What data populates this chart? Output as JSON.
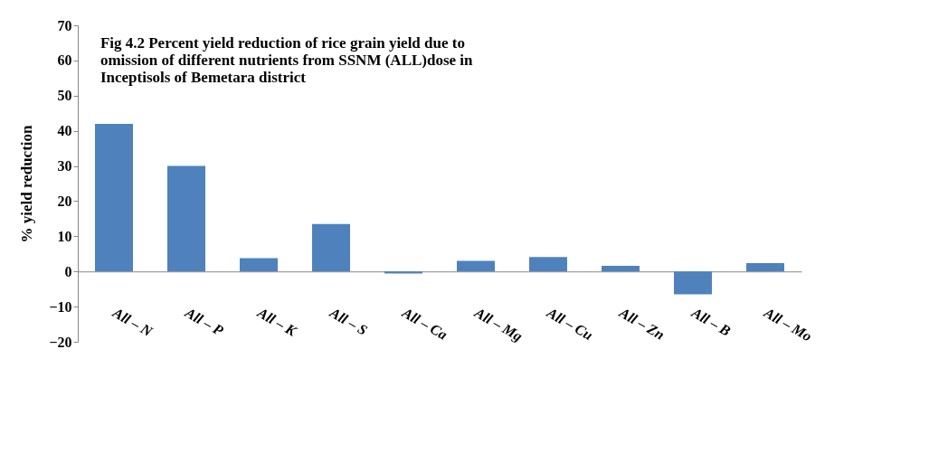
{
  "chart_data": {
    "type": "bar",
    "title": [
      "Fig 4.2 Percent yield reduction of rice grain yield due to",
      "omission of different nutrients from SSNM (ALL)dose in",
      "Inceptisols of Bemetara district"
    ],
    "ylabel": "% yield reduction",
    "categories": [
      "All – N",
      "All – P",
      "All – K",
      "All – S",
      "All – Ca",
      "All – Mg",
      "All – Cu",
      "All – Zn",
      "All – B",
      "All – Mo"
    ],
    "values": [
      42,
      30,
      3.8,
      13.5,
      -0.6,
      3.0,
      4.1,
      1.6,
      -6.5,
      2.4
    ],
    "color": "#4f81bd",
    "ylim": [
      -20,
      70
    ],
    "yticks": [
      -20,
      -10,
      0,
      10,
      20,
      30,
      40,
      50,
      60,
      70
    ],
    "grid": false
  }
}
